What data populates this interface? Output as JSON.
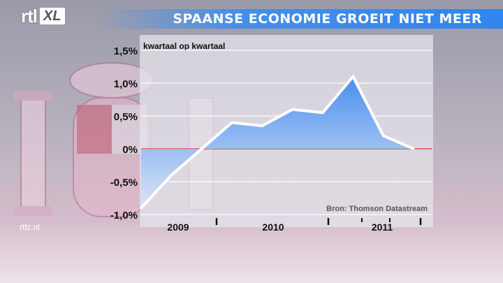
{
  "header": {
    "logo_text": "rtl",
    "logo_badge": "XL",
    "title": "SPAANSE ECONOMIE GROEIT NIET MEER"
  },
  "footer": {
    "url": "rtlz.nl"
  },
  "colors": {
    "title_bar": "#2f86ee",
    "area_fill": "#3a86f0",
    "line": "#ffffff",
    "zero_line": "#e06060"
  },
  "chart_data": {
    "type": "area",
    "subtitle": "kwartaal op kwartaal",
    "source": "Bron: Thomson Datastream",
    "y_ticks": [
      "1,5%",
      "1,0%",
      "0,5%",
      "0%",
      "-0,5%",
      "-1,0%"
    ],
    "y_tick_values": [
      1.5,
      1.0,
      0.5,
      0.0,
      -0.5,
      -1.0
    ],
    "ylim": [
      -1.0,
      1.5
    ],
    "year_labels": [
      "2009",
      "2010",
      "2011"
    ],
    "series": [
      {
        "values": [
          -0.9,
          -0.4,
          0.0,
          0.4,
          0.35,
          0.6,
          0.55,
          1.1,
          0.2,
          0.0
        ]
      }
    ],
    "grid": true
  }
}
